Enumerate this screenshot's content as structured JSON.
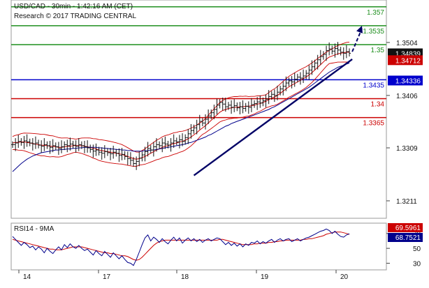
{
  "header": {
    "title": "USD/CAD - 30min - 1:42:16 AM (CET)",
    "credit": "Research © 2017 TRADING CENTRAL"
  },
  "chart_data": [
    {
      "type": "line",
      "panel": "price",
      "ylim": [
        1.318,
        1.358
      ],
      "y_ticks": [
        1.3211,
        1.3309,
        1.3406,
        1.3504
      ],
      "x_ticks": [
        "14",
        "17",
        "18",
        "19",
        "20"
      ],
      "price_series": [
        1.3315,
        1.3318,
        1.3321,
        1.3319,
        1.3322,
        1.332,
        1.3318,
        1.3316,
        1.3318,
        1.3314,
        1.3312,
        1.3315,
        1.3313,
        1.331,
        1.3313,
        1.3311,
        1.3308,
        1.3311,
        1.3315,
        1.3313,
        1.3316,
        1.3314,
        1.3312,
        1.3315,
        1.3313,
        1.3311,
        1.3309,
        1.3306,
        1.3303,
        1.3305,
        1.3301,
        1.3299,
        1.3302,
        1.33,
        1.3298,
        1.3301,
        1.3299,
        1.3295,
        1.3297,
        1.3293,
        1.3289,
        1.3286,
        1.328,
        1.3284,
        1.329,
        1.3296,
        1.3302,
        1.3308,
        1.3305,
        1.3311,
        1.3315,
        1.3313,
        1.3318,
        1.3316,
        1.3314,
        1.3318,
        1.3322,
        1.332,
        1.3324,
        1.3321,
        1.3328,
        1.3335,
        1.3341,
        1.3346,
        1.3352,
        1.3358,
        1.3355,
        1.3362,
        1.3368,
        1.3374,
        1.338,
        1.3388,
        1.3393,
        1.339,
        1.3385,
        1.3388,
        1.3384,
        1.3387,
        1.3383,
        1.3385,
        1.3382,
        1.3386,
        1.3384,
        1.3389,
        1.3391,
        1.3394,
        1.3392,
        1.3396,
        1.3399,
        1.3404,
        1.3408,
        1.3406,
        1.3412,
        1.3418,
        1.3423,
        1.3429,
        1.3433,
        1.3431,
        1.3436,
        1.344,
        1.3438,
        1.3442,
        1.3447,
        1.3453,
        1.3459,
        1.3466,
        1.3472,
        1.3478,
        1.3482,
        1.3489,
        1.3492,
        1.3488,
        1.3493,
        1.349,
        1.3486,
        1.3484,
        1.3487,
        1.3484
      ],
      "moving_average": {
        "color": "#cc0000",
        "values": [
          1.3318,
          1.3319,
          1.3319,
          1.332,
          1.332,
          1.3319,
          1.3318,
          1.3317,
          1.3316,
          1.3315,
          1.3314,
          1.3314,
          1.3313,
          1.3312,
          1.3312,
          1.3311,
          1.331,
          1.331,
          1.3311,
          1.3312,
          1.3312,
          1.3313,
          1.3313,
          1.3313,
          1.3313,
          1.3312,
          1.3311,
          1.331,
          1.3308,
          1.3307,
          1.3305,
          1.3304,
          1.3303,
          1.3302,
          1.3301,
          1.33,
          1.3299,
          1.3298,
          1.3297,
          1.3295,
          1.3293,
          1.3291,
          1.3289,
          1.3288,
          1.3289,
          1.3291,
          1.3293,
          1.3296,
          1.3299,
          1.3302,
          1.3305,
          1.3307,
          1.331,
          1.3312,
          1.3313,
          1.3315,
          1.3317,
          1.3318,
          1.332,
          1.3321,
          1.3323,
          1.3326,
          1.3329,
          1.3333,
          1.3337,
          1.3342,
          1.3346,
          1.335,
          1.3355,
          1.336,
          1.3365,
          1.337,
          1.3375,
          1.3378,
          1.338,
          1.3382,
          1.3383,
          1.3384,
          1.3384,
          1.3385,
          1.3385,
          1.3386,
          1.3386,
          1.3387,
          1.3388,
          1.339,
          1.3391,
          1.3393,
          1.3395,
          1.3398,
          1.3401,
          1.3403,
          1.3406,
          1.341,
          1.3414,
          1.3418,
          1.3422,
          1.3425,
          1.3428,
          1.3431,
          1.3434,
          1.3437,
          1.344,
          1.3444,
          1.3448,
          1.3453,
          1.3458,
          1.3463,
          1.3468,
          1.3473,
          1.3477,
          1.3479,
          1.3481,
          1.3483,
          1.3484,
          1.3485,
          1.3486,
          1.3486
        ]
      },
      "long_average": {
        "color": "#00008b",
        "values": [
          1.3265,
          1.327,
          1.3275,
          1.328,
          1.3284,
          1.3288,
          1.3291,
          1.3294,
          1.3296,
          1.3298,
          1.33,
          1.3301,
          1.3302,
          1.3303,
          1.3304,
          1.3305,
          1.3305,
          1.3306,
          1.3306,
          1.3307,
          1.3307,
          1.3308,
          1.3308,
          1.3309,
          1.3309,
          1.331,
          1.331,
          1.331,
          1.331,
          1.331,
          1.3309,
          1.3309,
          1.3308,
          1.3308,
          1.3307,
          1.3307,
          1.3306,
          1.3306,
          1.3305,
          1.3305,
          1.3304,
          1.3304,
          1.3303,
          1.3303,
          1.3303,
          1.3303,
          1.3304,
          1.3304,
          1.3305,
          1.3305,
          1.3306,
          1.3307,
          1.3308,
          1.3309,
          1.331,
          1.3311,
          1.3312,
          1.3313,
          1.3314,
          1.3315,
          1.3316,
          1.3318,
          1.3319,
          1.3321,
          1.3323,
          1.3325,
          1.3327,
          1.3329,
          1.3332,
          1.3334,
          1.3337,
          1.334,
          1.3343,
          1.3346,
          1.3349,
          1.3351,
          1.3354,
          1.3356,
          1.3358,
          1.336,
          1.3362,
          1.3364,
          1.3366,
          1.3368,
          1.337,
          1.3372,
          1.3374,
          1.3376,
          1.3378,
          1.338,
          1.3383,
          1.3385,
          1.3388,
          1.3391,
          1.3394,
          1.3397,
          1.34,
          1.3403,
          1.3406,
          1.3409,
          1.3412,
          1.3415,
          1.3418,
          1.3421,
          1.3425,
          1.3429,
          1.3433,
          1.3437,
          1.3441,
          1.3445,
          1.3449,
          1.3452,
          1.3455,
          1.3458,
          1.346,
          1.3462,
          1.3464,
          1.3466
        ]
      },
      "resistance_levels": [
        {
          "label": "1.357",
          "value": 1.357,
          "color": "#1f8f1f"
        },
        {
          "label": "1.3535",
          "value": 1.3535,
          "color": "#1f8f1f"
        },
        {
          "label": "1.35",
          "value": 1.35,
          "color": "#1f8f1f"
        }
      ],
      "pivot_level": {
        "label": "1.3435",
        "value": 1.3435,
        "color": "#0000cc"
      },
      "support_levels": [
        {
          "label": "1.34",
          "value": 1.34,
          "color": "#cc0000"
        },
        {
          "label": "1.3365",
          "value": 1.3365,
          "color": "#cc0000"
        }
      ],
      "last_price": {
        "label": "1.34839",
        "value": 1.34839
      },
      "price_tag_2": {
        "label": "1.34712",
        "value": 1.34712
      },
      "pivot_tag": {
        "label": "1.34336",
        "value": 1.34336
      },
      "trendline": {
        "from": [
          63,
          1.3258
        ],
        "to": [
          118,
          1.3473
        ]
      },
      "arrow": {
        "from": [
          118,
          1.3487
        ],
        "to": [
          125,
          1.3535
        ]
      }
    },
    {
      "type": "line",
      "panel": "rsi",
      "title": "RSI14 - 9MA",
      "ylim": [
        22,
        82
      ],
      "y_ticks": [
        "70",
        "50",
        "30"
      ],
      "rsi_tag": "69.5961",
      "ma_tag": "68.7521",
      "rsi_values": [
        66,
        62,
        58,
        54,
        58,
        55,
        51,
        53,
        48,
        52,
        49,
        44,
        50,
        46,
        43,
        48,
        52,
        48,
        55,
        51,
        56,
        52,
        50,
        54,
        50,
        47,
        49,
        45,
        41,
        47,
        43,
        40,
        46,
        42,
        38,
        44,
        40,
        36,
        40,
        35,
        31,
        30,
        27,
        35,
        45,
        55,
        64,
        68,
        60,
        65,
        62,
        58,
        63,
        59,
        56,
        61,
        65,
        60,
        64,
        57,
        61,
        64,
        60,
        63,
        59,
        62,
        58,
        61,
        63,
        60,
        62,
        64,
        63,
        59,
        55,
        58,
        54,
        57,
        53,
        56,
        52,
        56,
        54,
        58,
        57,
        60,
        56,
        59,
        57,
        60,
        62,
        58,
        61,
        63,
        60,
        62,
        63,
        59,
        61,
        63,
        60,
        62,
        64,
        65,
        67,
        69,
        71,
        73,
        74,
        76,
        74,
        70,
        73,
        69,
        66,
        65,
        68,
        69.6
      ],
      "ma_values": [
        62,
        61,
        60,
        59,
        58,
        57,
        56,
        55,
        54,
        53,
        52,
        51,
        50,
        49,
        49,
        48,
        48,
        48,
        49,
        50,
        51,
        52,
        52,
        52,
        52,
        51,
        50,
        49,
        48,
        47,
        46,
        45,
        44,
        44,
        43,
        43,
        42,
        41,
        40,
        40,
        39,
        37,
        35,
        34,
        35,
        38,
        42,
        46,
        50,
        54,
        57,
        59,
        60,
        61,
        61,
        61,
        61,
        61,
        61,
        61,
        61,
        61,
        61,
        61,
        61,
        61,
        61,
        61,
        61,
        61,
        61,
        61,
        62,
        62,
        61,
        60,
        59,
        58,
        57,
        56,
        55,
        55,
        55,
        55,
        56,
        56,
        57,
        57,
        57,
        58,
        58,
        59,
        59,
        60,
        60,
        61,
        61,
        61,
        61,
        61,
        61,
        62,
        62,
        63,
        63,
        64,
        65,
        66,
        67,
        69,
        70,
        71,
        72,
        72,
        72,
        71,
        70,
        68.8
      ]
    }
  ]
}
